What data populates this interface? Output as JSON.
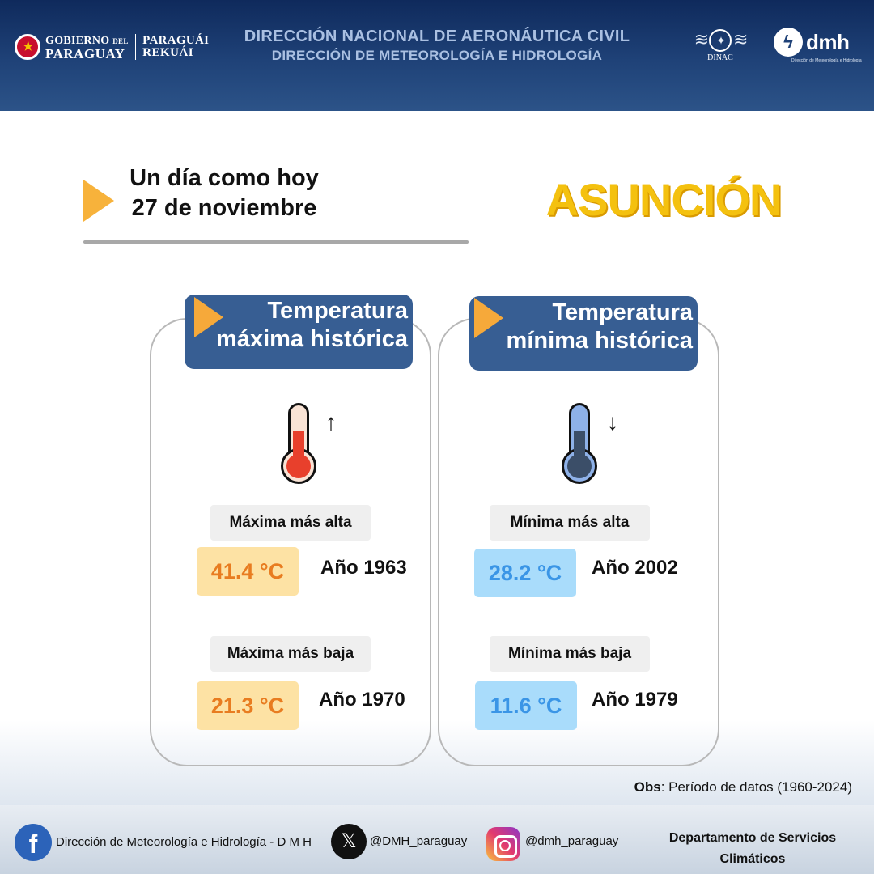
{
  "header": {
    "gov_line1": "GOBIERNO",
    "gov_line1_small": "DEL",
    "gov_line2": "PARAGUAY",
    "rek_line1": "PARAGUÁI",
    "rek_line2": "REKUÁI",
    "title1": "DIRECCIÓN NACIONAL DE AERONÁUTICA CIVIL",
    "title2": "DIRECCIÓN DE METEOROLOGÍA  E HIDROLOGÍA",
    "dinac_label": "DINAC",
    "dmh_name": "dmh",
    "dmh_sub": "Dirección de Meteorología e Hidrología"
  },
  "title": {
    "line1": "Un día como hoy",
    "line2": "27 de noviembre",
    "city": "ASUNCIÓN"
  },
  "max_card": {
    "header_line1": "Temperatura",
    "header_line2": "máxima histórica",
    "arrow": "↑",
    "highest": {
      "label": "Máxima más alta",
      "value": "41.4 °C",
      "year": "Año 1963"
    },
    "lowest": {
      "label": "Máxima más baja",
      "value": "21.3 °C",
      "year": "Año 1970"
    }
  },
  "min_card": {
    "header_line1": "Temperatura",
    "header_line2": "mínima histórica",
    "arrow": "↓",
    "highest": {
      "label": "Mínima más alta",
      "value": "28.2 °C",
      "year": "Año 2002"
    },
    "lowest": {
      "label": "Mínima más baja",
      "value": "11.6 °C",
      "year": "Año 1979"
    }
  },
  "obs": {
    "label": "Obs",
    "text": ": Período de datos (1960-2024)"
  },
  "footer": {
    "facebook_icon": "f",
    "facebook_text": "Dirección de Meteorología e Hidrología - D M H",
    "x_icon": "𝕏",
    "x_text": "@DMH_paraguay",
    "instagram_text": "@dmh_paraguay",
    "dept_line1": "Departamento de Servicios",
    "dept_line2": "Climáticos"
  },
  "colors": {
    "header_blue": "#1f4278",
    "card_header": "#375e93",
    "city_yellow": "#f4c10f",
    "hot_value": "#e87c20",
    "cold_value": "#3a95e6",
    "triangle": "#f7b23b"
  }
}
